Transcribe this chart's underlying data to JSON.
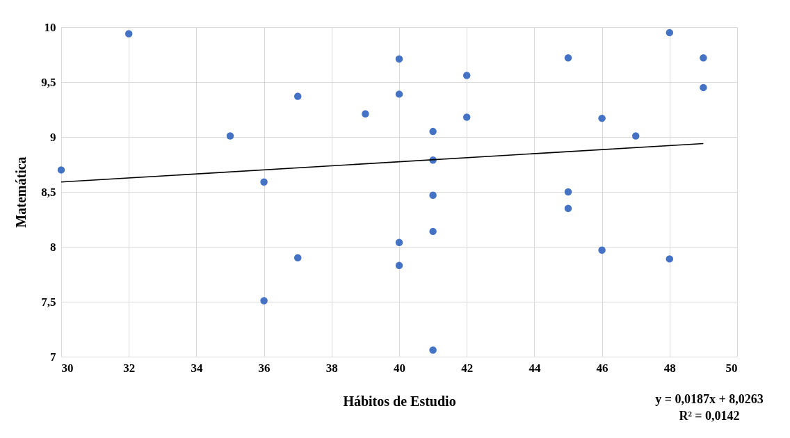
{
  "chart_data": {
    "type": "scatter",
    "xlabel": "Hábitos de Estudio",
    "ylabel": "Matemática",
    "xlim": [
      30,
      50
    ],
    "xticks": [
      30,
      32,
      34,
      36,
      38,
      40,
      42,
      44,
      46,
      48,
      50
    ],
    "ylim": [
      7,
      10
    ],
    "yticks": [
      7,
      {
        "value": 7.5,
        "label": "7,5"
      },
      8,
      {
        "value": 8.5,
        "label": "8,5"
      },
      9,
      {
        "value": 9.5,
        "label": "9,5"
      },
      10
    ],
    "grid": true,
    "series": [
      {
        "marker": "circle",
        "color": "#4472c4",
        "x": [
          30,
          32,
          35,
          36,
          36,
          37,
          37,
          39,
          40,
          40,
          40,
          40,
          41,
          41,
          41,
          41,
          41,
          42,
          42,
          45,
          45,
          45,
          46,
          46,
          47,
          48,
          48,
          49,
          49
        ],
        "values": [
          8.7,
          9.94,
          9.01,
          8.59,
          7.51,
          9.37,
          7.9,
          9.21,
          9.71,
          9.39,
          8.04,
          7.83,
          9.05,
          8.79,
          8.47,
          8.14,
          7.06,
          9.56,
          9.18,
          9.72,
          8.5,
          8.35,
          9.17,
          7.97,
          9.01,
          9.95,
          7.89,
          9.72,
          9.45
        ]
      },
      {
        "type": "line",
        "color": "#000000",
        "x": [
          30,
          49
        ],
        "values": [
          8.59,
          8.94
        ]
      }
    ],
    "annotations": [
      "y = 0,0187x + 8,0263",
      "R² = 0,0142"
    ]
  }
}
